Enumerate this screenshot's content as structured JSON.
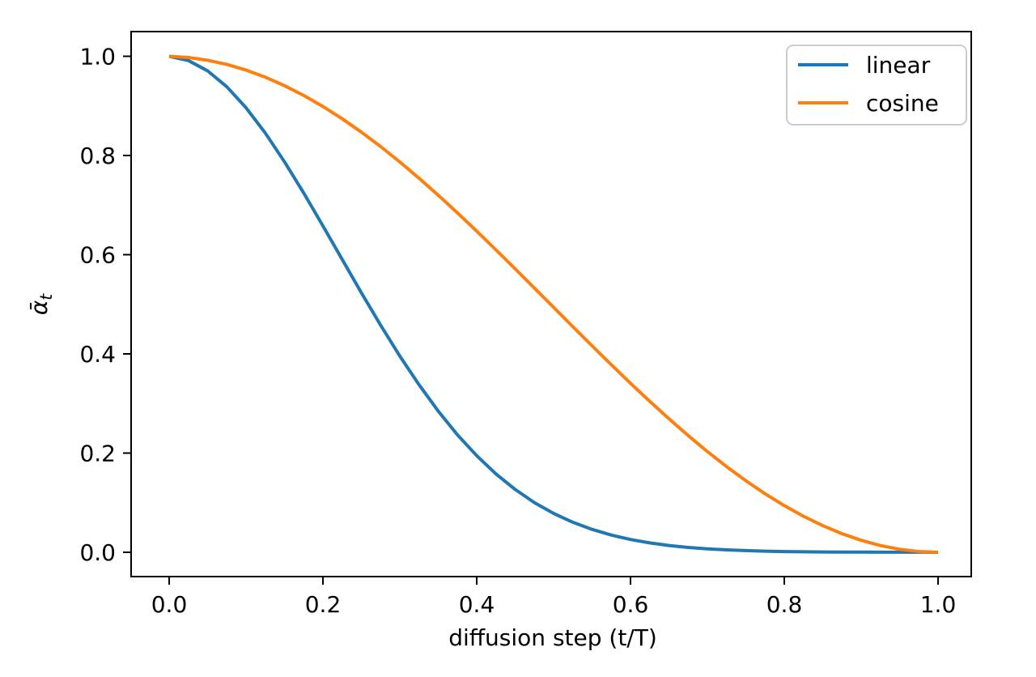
{
  "axes": {
    "xlabel": "diffusion step (t/T)",
    "ylabel_symbol": "ᾱ",
    "ylabel_subscript": "t",
    "x_ticks": {
      "values": [
        0.0,
        0.2,
        0.4,
        0.6,
        0.8,
        1.0
      ],
      "labels": [
        "0.0",
        "0.2",
        "0.4",
        "0.6",
        "0.8",
        "1.0"
      ]
    },
    "y_ticks": {
      "values": [
        0.0,
        0.2,
        0.4,
        0.6,
        0.8,
        1.0
      ],
      "labels": [
        "0.0",
        "0.2",
        "0.4",
        "0.6",
        "0.8",
        "1.0"
      ]
    }
  },
  "legend": {
    "items": [
      {
        "label": "linear",
        "color": "#1f77b4"
      },
      {
        "label": "cosine",
        "color": "#ff7f0e"
      }
    ]
  },
  "chart_data": {
    "type": "line",
    "title": "",
    "xlabel": "diffusion step (t/T)",
    "ylabel": "ᾱₜ",
    "xlim": [
      -0.0495,
      1.0432
    ],
    "ylim": [
      -0.049,
      1.0498
    ],
    "grid": false,
    "legend_position": "upper right",
    "x": [
      0,
      0.025,
      0.05,
      0.075,
      0.1,
      0.125,
      0.15,
      0.175,
      0.2,
      0.225,
      0.25,
      0.275,
      0.3,
      0.325,
      0.35,
      0.375,
      0.4,
      0.425,
      0.45,
      0.475,
      0.5,
      0.525,
      0.55,
      0.575,
      0.6,
      0.625,
      0.65,
      0.675,
      0.7,
      0.725,
      0.75,
      0.775,
      0.8,
      0.825,
      0.85,
      0.875,
      0.9,
      0.925,
      0.95,
      0.975,
      1.0
    ],
    "series": [
      {
        "name": "linear",
        "color": "#1f77b4",
        "values": [
          1.0,
          0.9913,
          0.9706,
          0.9385,
          0.8962,
          0.8453,
          0.7873,
          0.7243,
          0.658,
          0.5904,
          0.5231,
          0.4578,
          0.3956,
          0.3376,
          0.2845,
          0.2368,
          0.1947,
          0.1581,
          0.1267,
          0.1003,
          0.0784,
          0.0605,
          0.0462,
          0.0347,
          0.0258,
          0.019,
          0.0137,
          0.0098,
          0.007,
          0.0049,
          0.0034,
          0.0023,
          0.0015,
          0.001,
          0.0007,
          0.0004,
          0.0003,
          0.0002,
          0.0001,
          0.0001,
          0.0
        ]
      },
      {
        "name": "cosine",
        "color": "#ff7f0e",
        "values": [
          1.0,
          0.9975,
          0.992,
          0.9835,
          0.9721,
          0.9578,
          0.9407,
          0.921,
          0.8987,
          0.874,
          0.847,
          0.8179,
          0.7869,
          0.7542,
          0.7199,
          0.6842,
          0.6475,
          0.6098,
          0.5715,
          0.5328,
          0.4938,
          0.4549,
          0.4163,
          0.3782,
          0.3408,
          0.3044,
          0.2692,
          0.2354,
          0.2031,
          0.1727,
          0.1443,
          0.118,
          0.0941,
          0.0726,
          0.0537,
          0.0375,
          0.0241,
          0.0136,
          0.0061,
          0.0015,
          0.0
        ]
      }
    ]
  }
}
